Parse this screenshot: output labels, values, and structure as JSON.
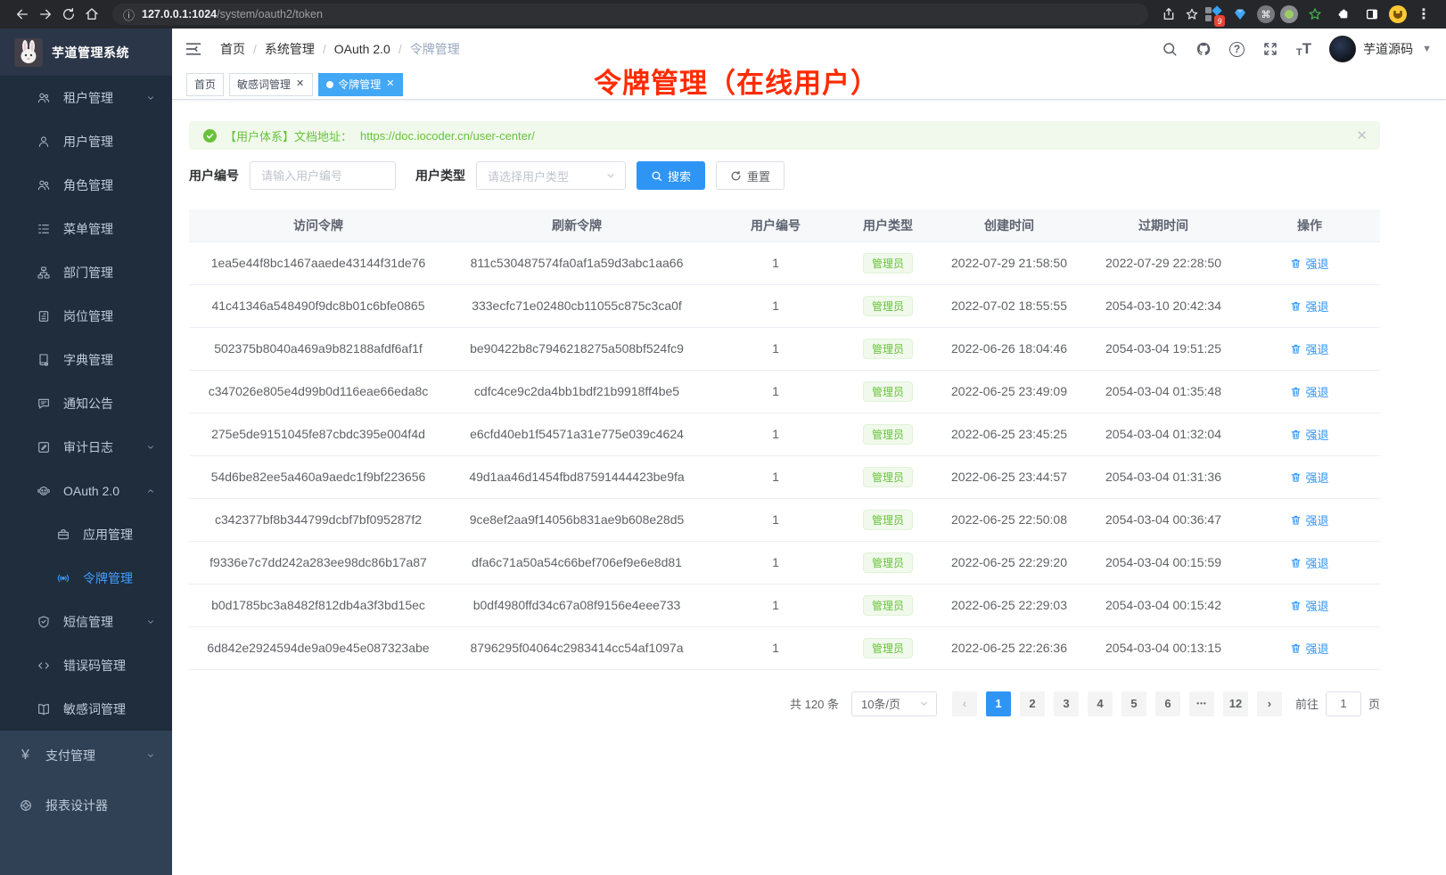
{
  "browser": {
    "url_host": "127.0.0.1:1024",
    "url_path": "/system/oauth2/token",
    "extension_badge": "9"
  },
  "app": {
    "title": "芋道管理系统"
  },
  "breadcrumb": [
    "首页",
    "系统管理",
    "OAuth 2.0",
    "令牌管理"
  ],
  "annotation": "令牌管理（在线用户）",
  "header_right": {
    "username": "芋道源码"
  },
  "tabs": [
    {
      "id": "home",
      "label": "首页",
      "active": false,
      "closable": false
    },
    {
      "id": "sensitive-word",
      "label": "敏感词管理",
      "active": false,
      "closable": true
    },
    {
      "id": "token",
      "label": "令牌管理",
      "active": true,
      "closable": true
    }
  ],
  "sidebar": {
    "items": [
      {
        "id": "tenant",
        "label": "租户管理",
        "icon": "users-icon",
        "level": "sub",
        "chevron": "down"
      },
      {
        "id": "user",
        "label": "用户管理",
        "icon": "user-icon",
        "level": "sub"
      },
      {
        "id": "role",
        "label": "角色管理",
        "icon": "role-icon",
        "level": "sub"
      },
      {
        "id": "menu",
        "label": "菜单管理",
        "icon": "tree-icon",
        "level": "sub"
      },
      {
        "id": "dept",
        "label": "部门管理",
        "icon": "org-icon",
        "level": "sub"
      },
      {
        "id": "post",
        "label": "岗位管理",
        "icon": "post-icon",
        "level": "sub"
      },
      {
        "id": "dict",
        "label": "字典管理",
        "icon": "dict-icon",
        "level": "sub"
      },
      {
        "id": "notice",
        "label": "通知公告",
        "icon": "notice-icon",
        "level": "sub"
      },
      {
        "id": "audit-log",
        "label": "审计日志",
        "icon": "audit-icon",
        "level": "sub",
        "chevron": "down"
      },
      {
        "id": "oauth2",
        "label": "OAuth 2.0",
        "icon": "oauth-icon",
        "level": "sub",
        "chevron": "up"
      },
      {
        "id": "oauth2-app",
        "label": "应用管理",
        "icon": "app-icon",
        "level": "sub2"
      },
      {
        "id": "oauth2-token",
        "label": "令牌管理",
        "icon": "signal-icon",
        "level": "sub2",
        "active": true
      },
      {
        "id": "sms",
        "label": "短信管理",
        "icon": "sms-icon",
        "level": "sub",
        "chevron": "down"
      },
      {
        "id": "error-code",
        "label": "错误码管理",
        "icon": "code-icon",
        "level": "sub"
      },
      {
        "id": "sensitive-word",
        "label": "敏感词管理",
        "icon": "book-icon",
        "level": "sub"
      },
      {
        "id": "pay",
        "label": "支付管理",
        "icon": "yen-icon",
        "level": "top",
        "chevron": "down"
      },
      {
        "id": "report",
        "label": "报表设计器",
        "icon": "report-icon",
        "level": "top"
      }
    ]
  },
  "alert": {
    "text": "【用户体系】文档地址：",
    "link": "https://doc.iocoder.cn/user-center/"
  },
  "filters": {
    "user_id_label": "用户编号",
    "user_id_placeholder": "请输入用户编号",
    "user_type_label": "用户类型",
    "user_type_placeholder": "请选择用户类型",
    "search_label": "搜索",
    "reset_label": "重置"
  },
  "table": {
    "columns": [
      "访问令牌",
      "刷新令牌",
      "用户编号",
      "用户类型",
      "创建时间",
      "过期时间",
      "操作"
    ],
    "user_type_tag": "管理员",
    "action_label": "强退",
    "rows": [
      [
        "1ea5e44f8bc1467aaede43144f31de76",
        "811c530487574fa0af1a59d3abc1aa66",
        "1",
        "2022-07-29 21:58:50",
        "2022-07-29 22:28:50"
      ],
      [
        "41c41346a548490f9dc8b01c6bfe0865",
        "333ecfc71e02480cb11055c875c3ca0f",
        "1",
        "2022-07-02 18:55:55",
        "2054-03-10 20:42:34"
      ],
      [
        "502375b8040a469a9b82188afdf6af1f",
        "be90422b8c7946218275a508bf524fc9",
        "1",
        "2022-06-26 18:04:46",
        "2054-03-04 19:51:25"
      ],
      [
        "c347026e805e4d99b0d116eae66eda8c",
        "cdfc4ce9c2da4bb1bdf21b9918ff4be5",
        "1",
        "2022-06-25 23:49:09",
        "2054-03-04 01:35:48"
      ],
      [
        "275e5de9151045fe87cbdc395e004f4d",
        "e6cfd40eb1f54571a31e775e039c4624",
        "1",
        "2022-06-25 23:45:25",
        "2054-03-04 01:32:04"
      ],
      [
        "54d6be82ee5a460a9aedc1f9bf223656",
        "49d1aa46d1454fbd87591444423be9fa",
        "1",
        "2022-06-25 23:44:57",
        "2054-03-04 01:31:36"
      ],
      [
        "c342377bf8b344799dcbf7bf095287f2",
        "9ce8ef2aa9f14056b831ae9b608e28d5",
        "1",
        "2022-06-25 22:50:08",
        "2054-03-04 00:36:47"
      ],
      [
        "f9336e7c7dd242a283ee98dc86b17a87",
        "dfa6c71a50a54c66bef706ef9e6e8d81",
        "1",
        "2022-06-25 22:29:20",
        "2054-03-04 00:15:59"
      ],
      [
        "b0d1785bc3a8482f812db4a3f3bd15ec",
        "b0df4980ffd34c67a08f9156e4eee733",
        "1",
        "2022-06-25 22:29:03",
        "2054-03-04 00:15:42"
      ],
      [
        "6d842e2924594de9a09e45e087323abe",
        "8796295f04064c2983414cc54af1097a",
        "1",
        "2022-06-25 22:26:36",
        "2054-03-04 00:13:15"
      ]
    ]
  },
  "pagination": {
    "total": "共 120 条",
    "page_size": "10条/页",
    "pages": [
      "1",
      "2",
      "3",
      "4",
      "5",
      "6",
      "...",
      "12"
    ],
    "active_page": "1",
    "goto_label": "前往",
    "goto_value": "1",
    "page_suffix": "页"
  },
  "colors": {
    "primary": "#2e95f5",
    "menu_active": "#409eff",
    "success": "#67c23a",
    "annotation_red": "#ff2b00",
    "sidebar_bg": "#304156",
    "submenu_bg": "#1f2d3d"
  }
}
